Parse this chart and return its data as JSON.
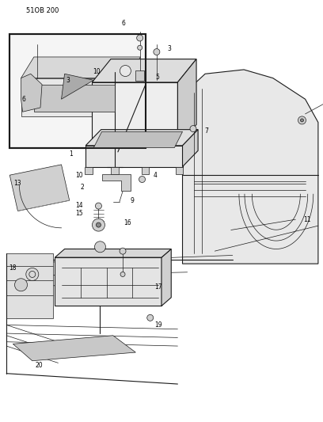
{
  "page_id": "51OB 200",
  "bg_color": "#ffffff",
  "lc": "#1a1a1a",
  "figsize": [
    4.08,
    5.33
  ],
  "dpi": 100,
  "lw_thin": 0.5,
  "lw_med": 0.8,
  "lw_thick": 1.5,
  "gray_light": "#d0d0d0",
  "gray_mid": "#aaaaaa",
  "gray_dark": "#888888"
}
